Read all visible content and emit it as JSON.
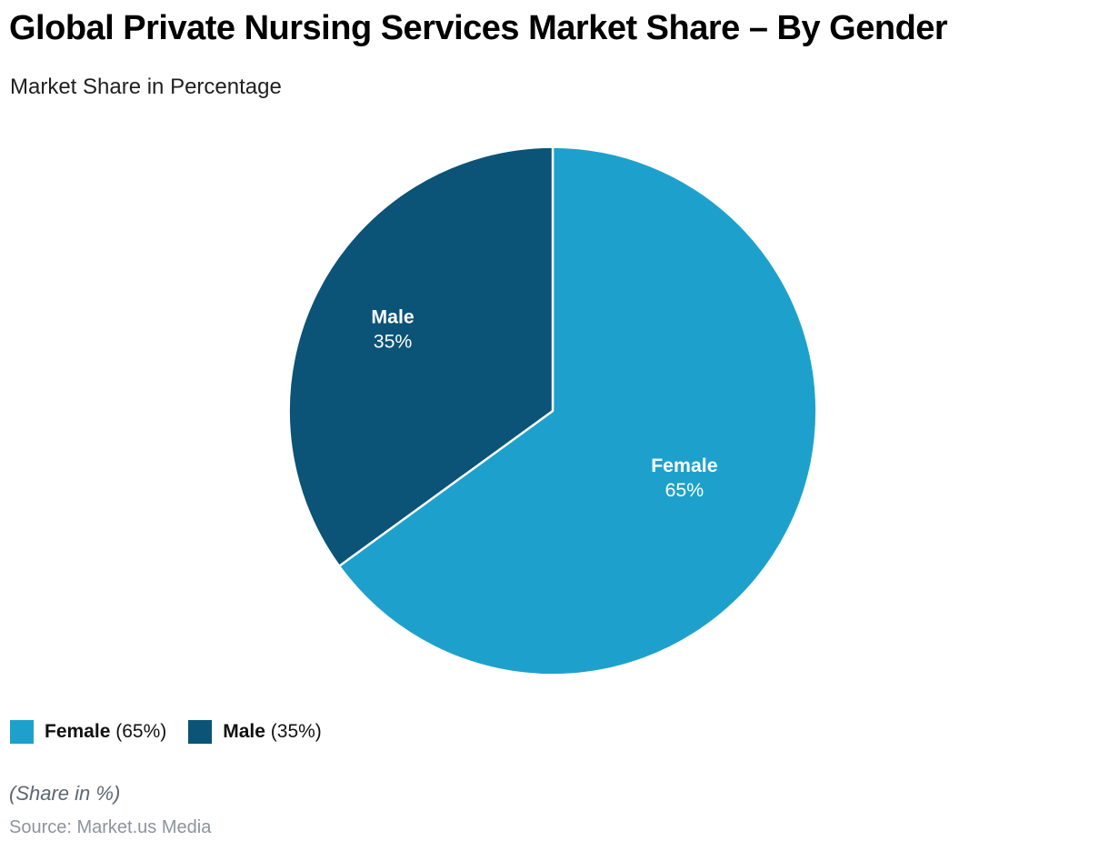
{
  "page": {
    "title": "Global Private Nursing Services Market Share – By Gender",
    "subtitle": "Market Share in Percentage",
    "note": "(Share in %)",
    "source": "Source: Market.us Media"
  },
  "colors": {
    "female_slice": "#1DA1CC",
    "male_slice": "#0B5377",
    "slice_border": "#FFFFFF",
    "title_text": "#000000",
    "note_text": "#5D6771",
    "source_text": "#8C949E"
  },
  "legend": [
    {
      "label": "Female",
      "value_text": "(65%)",
      "color": "#1DA1CC"
    },
    {
      "label": "Male",
      "value_text": "(35%)",
      "color": "#0B5377"
    }
  ],
  "chart_data": {
    "type": "pie",
    "title": "Global Private Nursing Services Market Share – By Gender",
    "subtitle": "Market Share in Percentage",
    "categories": [
      "Female",
      "Male"
    ],
    "values": [
      65,
      35
    ],
    "unit": "%",
    "colors": [
      "#1DA1CC",
      "#0B5377"
    ],
    "slice_labels": [
      {
        "name": "Female",
        "pct": "65%"
      },
      {
        "name": "Male",
        "pct": "35%"
      }
    ],
    "start_angle": "top",
    "direction": "clockwise",
    "legend_position": "bottom-left",
    "annotations": [
      "(Share in %)",
      "Source: Market.us Media"
    ]
  }
}
